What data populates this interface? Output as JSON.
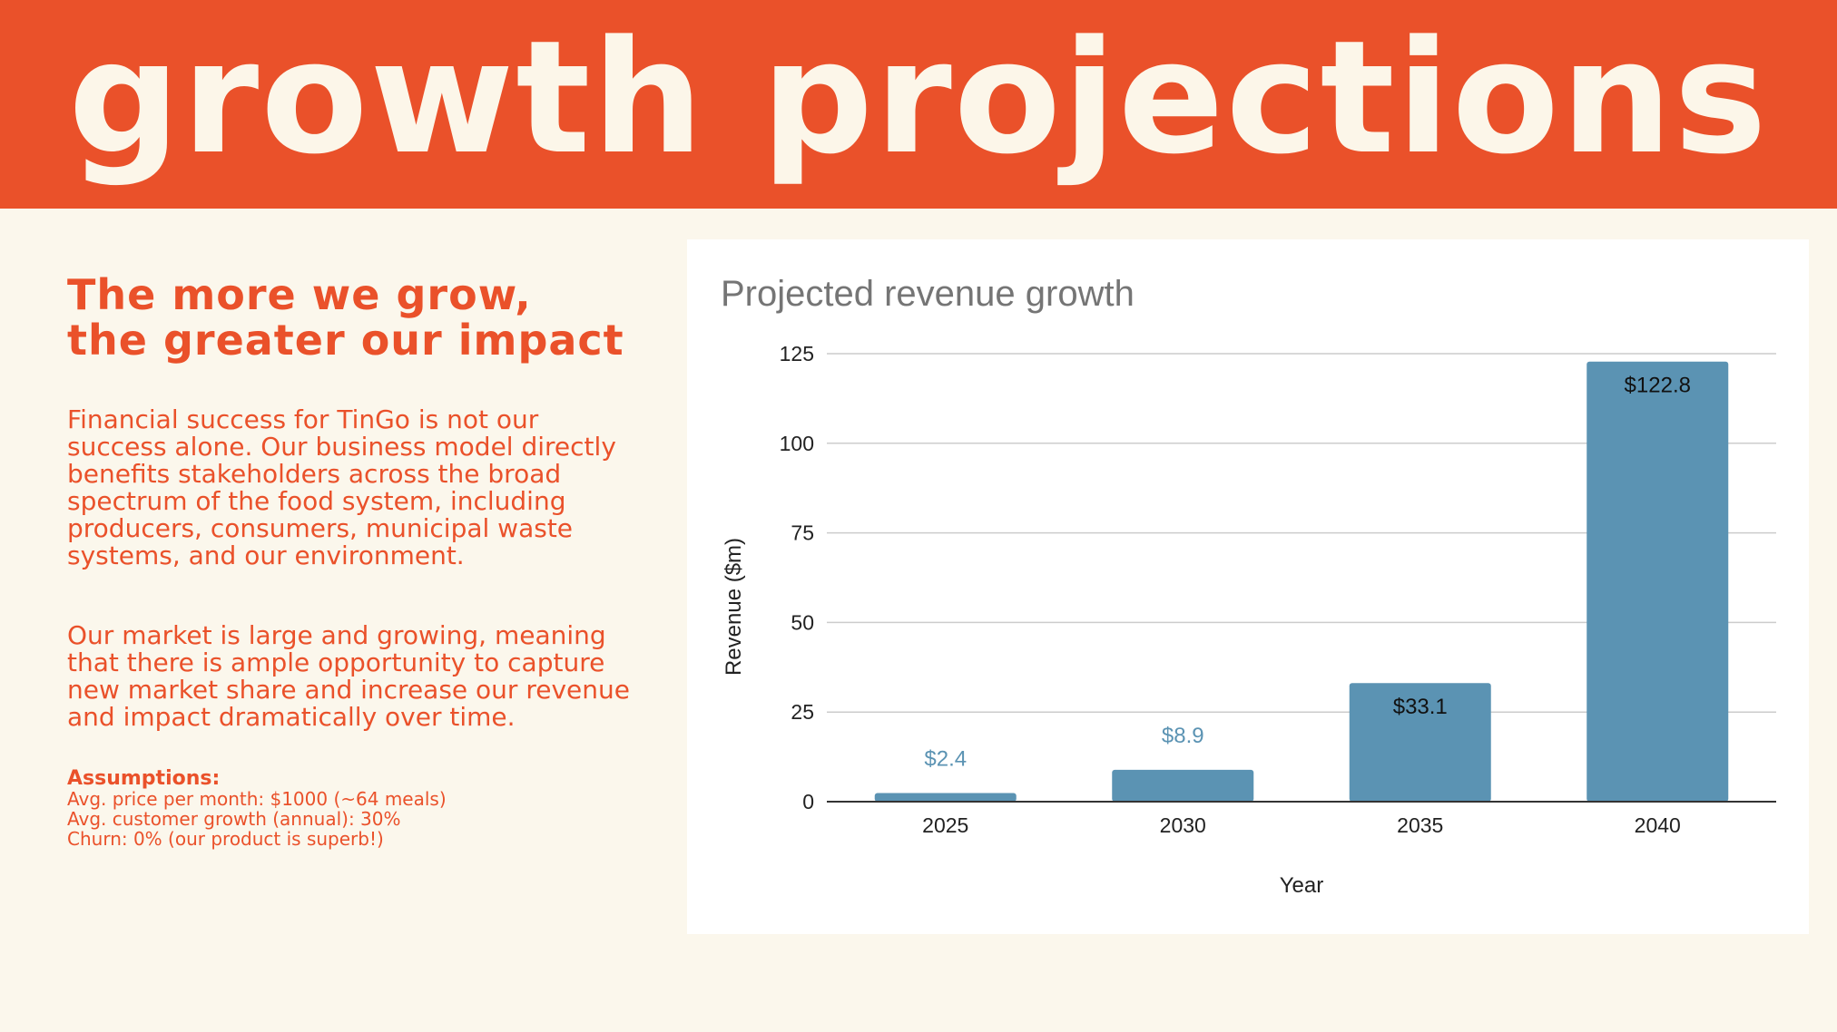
{
  "header": {
    "title": "growth projections"
  },
  "left": {
    "headline_line1": "The more we grow,",
    "headline_line2": "the greater our impact",
    "paragraph1": "Financial success for TinGo is not our success alone. Our business model directly benefits stakeholders across the broad spectrum of the food system, including producers, consumers, municipal waste systems, and our environment.",
    "paragraph2": "Our market is large and growing, meaning that there is ample opportunity to capture new market share and increase our revenue and impact dramatically over time.",
    "assumptions_title": "Assumptions:",
    "assumptions": [
      "Avg. price per month: $1000 (~64 meals)",
      "Avg. customer growth (annual): 30%",
      "Churn: 0% (our product is superb!)"
    ]
  },
  "colors": {
    "brand_orange": "#ea512a",
    "cream": "#fbf7ec",
    "bar_blue": "#5b93b3",
    "gridline": "#cccccc"
  },
  "chart_data": {
    "type": "bar",
    "title": "Projected revenue growth",
    "xlabel": "Year",
    "ylabel": "Revenue ($m)",
    "categories": [
      "2025",
      "2030",
      "2035",
      "2040"
    ],
    "values": [
      2.4,
      8.9,
      33.1,
      122.8
    ],
    "data_labels": [
      "$2.4",
      "$8.9",
      "$33.1",
      "$122.8"
    ],
    "ylim": [
      0,
      125
    ],
    "yticks": [
      0,
      25,
      50,
      75,
      100,
      125
    ],
    "grid": true,
    "legend": "none"
  }
}
